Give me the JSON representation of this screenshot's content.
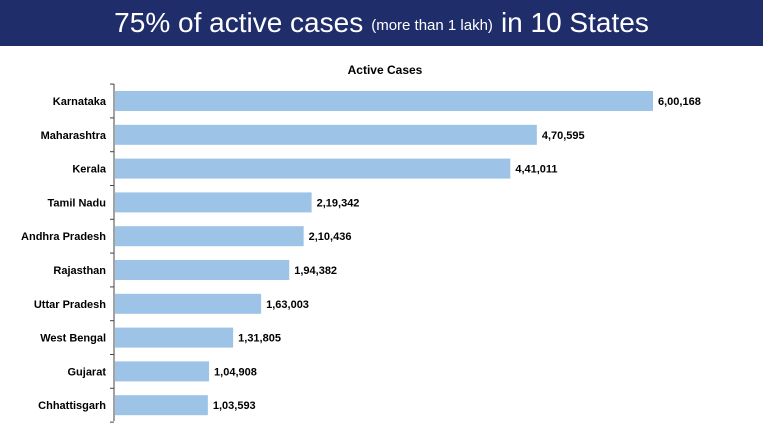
{
  "banner": {
    "title_part1": "75% of active cases",
    "title_part2": "(more than 1 lakh)",
    "title_part3": "in 10 States",
    "background_color": "#1f2d6b",
    "text_color": "#ffffff"
  },
  "chart_data": {
    "type": "bar",
    "orientation": "horizontal",
    "title": "Active Cases",
    "xlabel": "",
    "ylabel": "",
    "grid": false,
    "bar_color": "#9dc3e6",
    "categories": [
      "Karnataka",
      "Maharashtra",
      "Kerala",
      "Tamil Nadu",
      "Andhra Pradesh",
      "Rajasthan",
      "Uttar Pradesh",
      "West Bengal",
      "Gujarat",
      "Chhattisgarh"
    ],
    "values": [
      600168,
      470595,
      441011,
      219342,
      210436,
      194382,
      163003,
      131805,
      104908,
      103593
    ],
    "value_labels": [
      "6,00,168",
      "4,70,595",
      "4,41,011",
      "2,19,342",
      "2,10,436",
      "1,94,382",
      "1,63,003",
      "1,31,805",
      "1,04,908",
      "1,03,593"
    ],
    "xlim": [
      0,
      600168
    ]
  }
}
